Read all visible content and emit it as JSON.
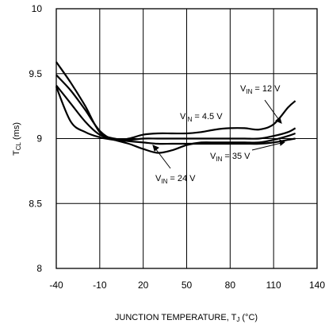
{
  "chart_data": {
    "type": "line",
    "title": "",
    "xlabel": {
      "main": "JUNCTION TEMPERATURE, T",
      "sub": "J",
      "unit": " (°C)"
    },
    "ylabel": {
      "main": "T",
      "sub": "CL",
      "unit": " (ms)"
    },
    "xlim": [
      -40,
      140
    ],
    "ylim": [
      8,
      10
    ],
    "x_ticks": [
      -40,
      -10,
      20,
      50,
      80,
      110,
      140
    ],
    "y_ticks": [
      8,
      8.5,
      9,
      9.5,
      10
    ],
    "x_tick_labels": [
      "-40",
      "-10",
      "20",
      "50",
      "80",
      "110",
      "140"
    ],
    "y_tick_labels": [
      "8",
      "8.5",
      "9",
      "9.5",
      "10"
    ],
    "grid": true,
    "series": [
      {
        "name": "VIN = 4.5 V",
        "x": [
          -40,
          -30,
          -20,
          -10,
          0,
          10,
          20,
          30,
          40,
          50,
          60,
          70,
          80,
          90,
          100,
          110,
          120,
          125
        ],
        "y": [
          9.49,
          9.37,
          9.22,
          9.06,
          8.99,
          9.0,
          9.03,
          9.04,
          9.04,
          9.04,
          9.05,
          9.07,
          9.08,
          9.08,
          9.07,
          9.11,
          9.24,
          9.29
        ]
      },
      {
        "name": "VIN = 12 V",
        "x": [
          -40,
          -30,
          -20,
          -10,
          0,
          10,
          20,
          30,
          40,
          50,
          60,
          70,
          80,
          90,
          100,
          110,
          120,
          125
        ],
        "y": [
          9.59,
          9.43,
          9.25,
          9.05,
          9.0,
          8.99,
          9.0,
          9.0,
          9.0,
          9.0,
          9.0,
          9.0,
          9.0,
          9.0,
          9.0,
          9.02,
          9.05,
          9.08
        ]
      },
      {
        "name": "VIN = 24 V",
        "x": [
          -40,
          -30,
          -20,
          -10,
          0,
          10,
          20,
          30,
          40,
          50,
          60,
          70,
          80,
          90,
          100,
          110,
          120,
          125
        ],
        "y": [
          9.41,
          9.27,
          9.13,
          9.03,
          8.99,
          8.96,
          8.92,
          8.89,
          8.91,
          8.95,
          8.97,
          8.97,
          8.97,
          8.97,
          8.97,
          8.99,
          9.02,
          9.04
        ]
      },
      {
        "name": "VIN = 35 V",
        "x": [
          -40,
          -30,
          -20,
          -10,
          0,
          10,
          20,
          30,
          40,
          50,
          60,
          70,
          80,
          90,
          100,
          110,
          120,
          125
        ],
        "y": [
          9.4,
          9.13,
          9.05,
          9.01,
          8.99,
          8.98,
          8.97,
          8.96,
          8.96,
          8.96,
          8.96,
          8.96,
          8.96,
          8.96,
          8.96,
          8.97,
          8.99,
          9.0
        ]
      }
    ],
    "annotations": [
      {
        "main": "V",
        "sub": "IN",
        "rest": " = 4.5 V"
      },
      {
        "main": "V",
        "sub": "IN",
        "rest": " = 12 V"
      },
      {
        "main": "V",
        "sub": "IN",
        "rest": " = 24 V"
      },
      {
        "main": "V",
        "sub": "IN",
        "rest": " = 35 V"
      }
    ]
  }
}
